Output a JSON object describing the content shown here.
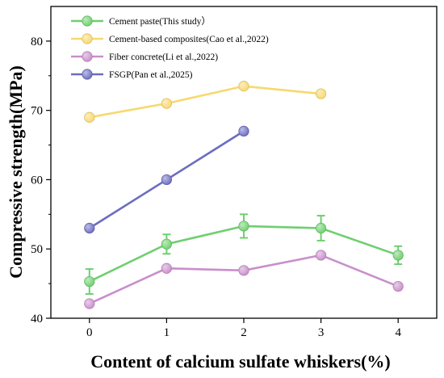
{
  "chart_data": {
    "type": "line",
    "title": "",
    "xlabel": "Content of calcium sulfate whiskers(%)",
    "ylabel": "Compressive strength(MPa)",
    "xlim": [
      -0.5,
      4.5
    ],
    "ylim": [
      40,
      85
    ],
    "xticks": [
      0,
      1,
      2,
      3,
      4
    ],
    "yticks": [
      40,
      50,
      60,
      70,
      80
    ],
    "grid": false,
    "legend_position": "top-left",
    "series": [
      {
        "name": "Cement paste(This study）",
        "color": "#6fcf6f",
        "x": [
          0,
          1,
          2,
          3,
          4
        ],
        "y": [
          45.3,
          50.7,
          53.3,
          53.0,
          49.1
        ],
        "error": [
          1.8,
          1.4,
          1.7,
          1.8,
          1.3
        ]
      },
      {
        "name": "Cement-based composites(Cao et al.,2022)",
        "color": "#f8d86e",
        "x": [
          0,
          1,
          2,
          3
        ],
        "y": [
          69.0,
          71.0,
          73.5,
          72.4
        ]
      },
      {
        "name": "Fiber concrete(Li et al.,2022)",
        "color": "#c98fcb",
        "x": [
          0,
          1,
          2,
          3,
          4
        ],
        "y": [
          42.1,
          47.2,
          46.9,
          49.1,
          44.6
        ]
      },
      {
        "name": "FSGP(Pan et al.,2025)",
        "color": "#6c6cc2",
        "x": [
          0,
          1,
          2
        ],
        "y": [
          53.0,
          60.0,
          67.0
        ]
      }
    ]
  }
}
